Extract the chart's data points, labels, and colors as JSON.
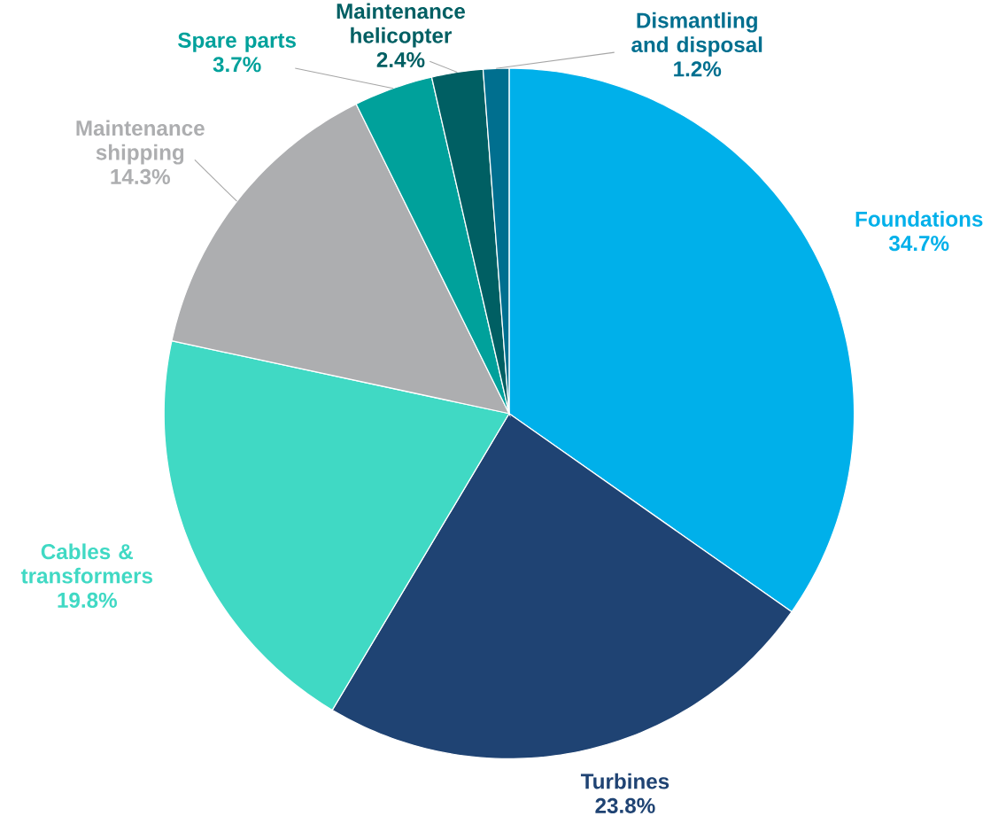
{
  "chart_data": {
    "type": "pie",
    "categories": [
      "Foundations",
      "Turbines",
      "Cables & transformers",
      "Maintenance shipping",
      "Spare parts",
      "Maintenance helicopter",
      "Dismantling and disposal"
    ],
    "values": [
      34.7,
      23.8,
      19.8,
      14.3,
      3.7,
      2.4,
      1.2
    ],
    "value_labels": [
      "34.7%",
      "23.8%",
      "19.8%",
      "14.3%",
      "3.7%",
      "2.4%",
      "1.2%"
    ],
    "colors": [
      "#00b0ea",
      "#1f4373",
      "#40d9c4",
      "#adaeb0",
      "#00a19b",
      "#005f63",
      "#006f8f"
    ]
  }
}
